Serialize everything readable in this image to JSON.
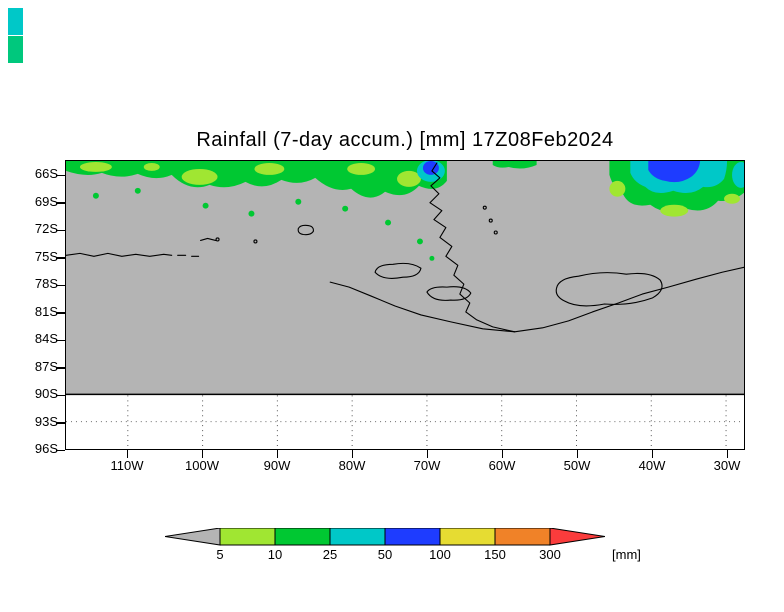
{
  "title": "Rainfall (7-day accum.) [mm] 17Z08Feb2024",
  "axes": {
    "lat_labels": [
      "66S",
      "69S",
      "72S",
      "75S",
      "78S",
      "81S",
      "84S",
      "87S",
      "90S",
      "93S",
      "96S"
    ],
    "lon_labels": [
      "110W",
      "100W",
      "90W",
      "80W",
      "70W",
      "60W",
      "50W",
      "40W",
      "30W"
    ]
  },
  "colorbar": {
    "tick_labels": [
      "5",
      "10",
      "25",
      "50",
      "100",
      "150",
      "300"
    ],
    "unit_label": "[mm]",
    "segment_colors": [
      "#b4b4b4",
      "#a0e632",
      "#00c832",
      "#00c8c8",
      "#1e3cff",
      "#e6dc32",
      "#f08228",
      "#fa3c3c"
    ]
  },
  "artifacts": {
    "corner_swatch_colors": [
      "#00c8c8",
      "#00c87d"
    ]
  },
  "chart_data": {
    "type": "heatmap",
    "title": "Rainfall (7-day accum.) [mm] 17Z08Feb2024",
    "variable": "7-day accumulated rainfall",
    "units": "mm",
    "valid_time": "17Z08Feb2024",
    "contour_levels_mm": [
      5,
      10,
      25,
      50,
      100,
      150,
      300
    ],
    "level_colors": [
      "#b4b4b4",
      "#a0e632",
      "#00c832",
      "#00c8c8",
      "#1e3cff",
      "#e6dc32",
      "#f08228",
      "#fa3c3c"
    ],
    "x_axis": {
      "label": "longitude",
      "ticks": [
        "110W",
        "100W",
        "90W",
        "80W",
        "70W",
        "60W",
        "50W",
        "40W",
        "30W"
      ]
    },
    "y_axis": {
      "label": "latitude",
      "ticks": [
        "66S",
        "69S",
        "72S",
        "75S",
        "78S",
        "81S",
        "84S",
        "87S",
        "90S",
        "93S",
        "96S"
      ]
    },
    "background": "land/ice and values below 5 mm shaded gray; band south of 90S blank with dotted meridians",
    "features": [
      {
        "region": "66S-70S, 118W-70W",
        "value_mm": "5-25",
        "description": "patchy green precipitation band along the northern edge of the map"
      },
      {
        "region": "66S-68S near 62W",
        "value_mm": "25-100",
        "description": "small cyan/blue precipitation maximum at the tip of the Antarctic Peninsula"
      },
      {
        "region": "66S-71S, 45W-28W",
        "value_mm": "25-100",
        "description": "larger precipitation area with cyan ring and blue core (50-100 mm)"
      },
      {
        "region": "70S-78S scattered",
        "value_mm": "5-10",
        "description": "isolated small green precipitation specks over the interior"
      }
    ],
    "notes": "Antarctic Peninsula / Weddell Sea sector; black coastline contours; solid black line at 90S"
  }
}
